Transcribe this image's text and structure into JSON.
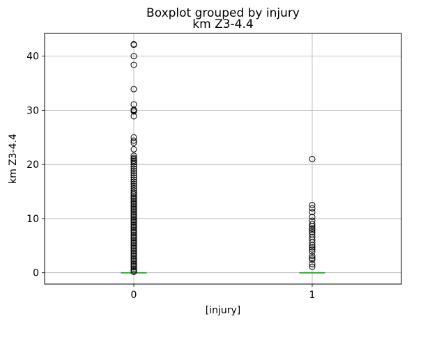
{
  "chart_data": {
    "type": "box",
    "suptitle": "Boxplot grouped by injury",
    "title": "km Z3-4.4",
    "xlabel": "[injury]",
    "ylabel": "km Z3-4.4",
    "ylim": [
      -2.1,
      44.2
    ],
    "yticks": [
      0,
      10,
      20,
      30,
      40
    ],
    "grid": true,
    "categories": [
      "0",
      "1"
    ],
    "boxes": [
      {
        "category": "0",
        "q1": 0,
        "median": 0,
        "q3": 0,
        "whisker_low": 0,
        "whisker_high": 0,
        "outliers": [
          42.2,
          42.1,
          40.0,
          38.4,
          33.9,
          31.1,
          30.1,
          30.0,
          29.8,
          28.9,
          25.0,
          24.4,
          24.0,
          22.8,
          21.6,
          21.2,
          21.0,
          20.7,
          20.4,
          20.0,
          19.6,
          19.2,
          18.8,
          18.4,
          18.0,
          17.6,
          17.2,
          16.8,
          16.4,
          16.0,
          15.6,
          15.2,
          14.8,
          14.5,
          14.2,
          13.9,
          13.6,
          13.3,
          13.0,
          12.7,
          12.4,
          12.1,
          11.8,
          11.5,
          11.2,
          10.9,
          10.6,
          10.3,
          10.0,
          9.7,
          9.4,
          9.1,
          8.8,
          8.5,
          8.2,
          7.9,
          7.6,
          7.3,
          7.0,
          6.7,
          6.4,
          6.1,
          5.8,
          5.5,
          5.2,
          4.9,
          4.6,
          4.3,
          4.0,
          3.7,
          3.4,
          3.1,
          2.8,
          2.5,
          2.2,
          1.9,
          1.6,
          1.3,
          1.0,
          0.7,
          0.4,
          0.15
        ]
      },
      {
        "category": "1",
        "q1": 0,
        "median": 0,
        "q3": 0,
        "whisker_low": 0,
        "whisker_high": 0,
        "outliers": [
          21.0,
          12.5,
          11.9,
          11.2,
          10.3,
          9.6,
          9.0,
          8.6,
          8.2,
          7.9,
          7.5,
          7.1,
          6.6,
          6.1,
          5.6,
          5.1,
          4.7,
          4.3,
          3.9,
          3.1,
          2.7,
          2.4,
          1.6,
          1.1
        ]
      }
    ],
    "colors": {
      "box": "#1f77b4",
      "median": "#2ca02c",
      "outlier": "#000000",
      "grid": "#b0b0b0"
    }
  }
}
